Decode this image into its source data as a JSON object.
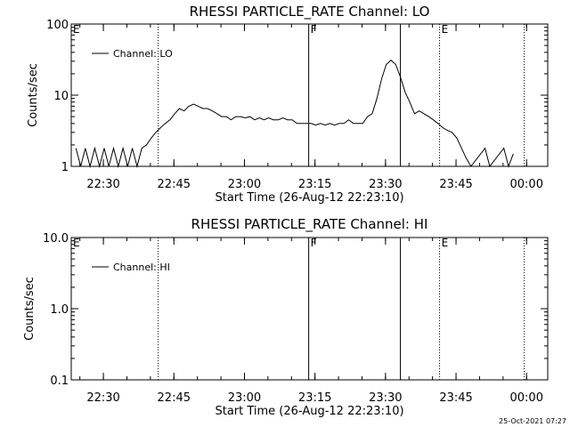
{
  "footer": {
    "timestamp": "25-Oct-2021 07:27"
  },
  "chart_data": [
    {
      "type": "line",
      "title": "RHESSI PARTICLE_RATE Channel: LO",
      "xlabel": "Start Time (26-Aug-12 22:23:10)",
      "ylabel": "Counts/sec",
      "yscale": "log",
      "ylim": [
        1,
        100
      ],
      "xlim": [
        "22:23:10",
        "00:04:30"
      ],
      "xticks": [
        "22:30",
        "22:45",
        "23:00",
        "23:15",
        "23:30",
        "23:45",
        "00:00"
      ],
      "yticks": [
        "1",
        "10",
        "100"
      ],
      "legend": {
        "entries": [
          "Channel: LO"
        ],
        "placement": "top-left"
      },
      "markers": [
        {
          "time": "22:23:10",
          "label": "E",
          "style": "dotted"
        },
        {
          "time": "22:41:40",
          "label": "",
          "style": "dotted"
        },
        {
          "time": "23:13:40",
          "label": "F",
          "style": "solid"
        },
        {
          "time": "23:33:10",
          "label": "",
          "style": "solid"
        },
        {
          "time": "23:41:30",
          "label": "E",
          "style": "dotted"
        },
        {
          "time": "23:59:30",
          "label": "",
          "style": "dotted"
        }
      ],
      "series": [
        {
          "name": "Channel: LO",
          "x": [
            "22:24:10",
            "22:25:10",
            "22:26:10",
            "22:27:10",
            "22:28:10",
            "22:29:10",
            "22:30:10",
            "22:31:10",
            "22:32:10",
            "22:33:10",
            "22:34:10",
            "22:35:10",
            "22:36:10",
            "22:37:10",
            "22:38:10",
            "22:39:10",
            "22:40:10",
            "22:41:10",
            "22:42:10",
            "22:43:10",
            "22:44:10",
            "22:45:10",
            "22:46:10",
            "22:47:10",
            "22:48:10",
            "22:49:10",
            "22:50:10",
            "22:51:10",
            "22:52:10",
            "22:53:10",
            "22:54:10",
            "22:55:10",
            "22:56:10",
            "22:57:10",
            "22:58:10",
            "22:59:10",
            "23:00:10",
            "23:01:10",
            "23:02:10",
            "23:03:10",
            "23:04:10",
            "23:05:10",
            "23:06:10",
            "23:07:10",
            "23:08:10",
            "23:09:10",
            "23:10:10",
            "23:11:10",
            "23:12:10",
            "23:13:10",
            "23:14:10",
            "23:15:10",
            "23:16:10",
            "23:17:10",
            "23:18:10",
            "23:19:10",
            "23:20:10",
            "23:21:10",
            "23:22:10",
            "23:23:10",
            "23:24:10",
            "23:25:10",
            "23:26:10",
            "23:27:10",
            "23:28:10",
            "23:29:10",
            "23:30:10",
            "23:31:10",
            "23:32:10",
            "23:33:10",
            "23:34:10",
            "23:35:10",
            "23:36:10",
            "23:37:10",
            "23:38:10",
            "23:39:10",
            "23:40:10",
            "23:41:10",
            "23:42:10",
            "23:43:10",
            "23:44:10",
            "23:45:10",
            "23:46:10",
            "23:47:10",
            "23:48:10",
            "23:51:10",
            "23:52:10",
            "23:55:10",
            "23:56:10",
            "23:57:10"
          ],
          "y": [
            1.8,
            1.0,
            1.8,
            1.0,
            1.8,
            1.0,
            1.8,
            1.0,
            1.8,
            1.0,
            1.8,
            1.0,
            1.8,
            1.0,
            1.8,
            2.0,
            2.5,
            3.0,
            3.5,
            4.0,
            4.5,
            5.5,
            6.5,
            6.0,
            7.0,
            7.5,
            7.0,
            6.5,
            6.5,
            6.0,
            5.5,
            5.0,
            5.0,
            4.5,
            5.0,
            5.0,
            4.8,
            5.0,
            4.5,
            4.8,
            4.5,
            4.8,
            4.5,
            4.5,
            4.8,
            4.5,
            4.5,
            4.0,
            4.0,
            4.0,
            4.0,
            3.8,
            4.0,
            3.8,
            4.0,
            3.8,
            4.0,
            4.0,
            4.5,
            4.0,
            4.0,
            4.0,
            5.0,
            5.5,
            9.0,
            17.0,
            27.0,
            31.0,
            27.0,
            18.0,
            11.0,
            8.0,
            5.5,
            6.0,
            5.5,
            5.0,
            4.5,
            4.0,
            3.5,
            3.2,
            3.0,
            2.5,
            1.8,
            1.3,
            1.0,
            1.8,
            1.0,
            1.8,
            1.0,
            1.5
          ]
        }
      ]
    },
    {
      "type": "line",
      "title": "RHESSI PARTICLE_RATE Channel: HI",
      "xlabel": "Start Time (26-Aug-12 22:23:10)",
      "ylabel": "Counts/sec",
      "yscale": "log",
      "ylim": [
        0.1,
        10
      ],
      "xlim": [
        "22:23:10",
        "00:04:30"
      ],
      "xticks": [
        "22:30",
        "22:45",
        "23:00",
        "23:15",
        "23:30",
        "23:45",
        "00:00"
      ],
      "yticks": [
        "0.1",
        "1.0",
        "10.0"
      ],
      "legend": {
        "entries": [
          "Channel: HI"
        ],
        "placement": "top-left"
      },
      "markers": [
        {
          "time": "22:23:10",
          "label": "E",
          "style": "dotted"
        },
        {
          "time": "22:41:40",
          "label": "",
          "style": "dotted"
        },
        {
          "time": "23:13:40",
          "label": "F",
          "style": "solid"
        },
        {
          "time": "23:33:10",
          "label": "",
          "style": "solid"
        },
        {
          "time": "23:41:30",
          "label": "E",
          "style": "dotted"
        },
        {
          "time": "23:59:30",
          "label": "",
          "style": "dotted"
        }
      ],
      "series": [
        {
          "name": "Channel: HI",
          "x": [],
          "y": []
        }
      ]
    }
  ]
}
